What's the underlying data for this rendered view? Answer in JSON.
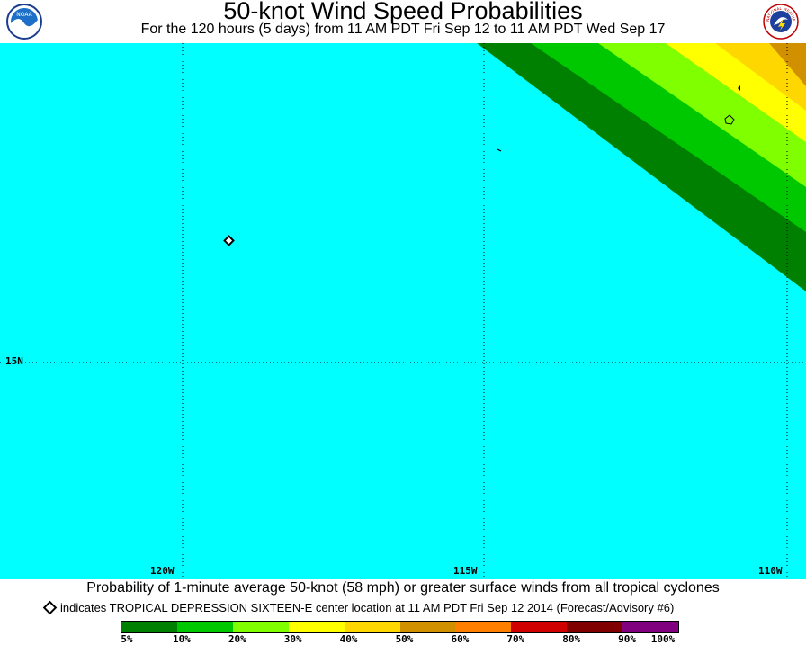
{
  "header": {
    "title": "50-knot Wind Speed Probabilities",
    "subtitle": "For the 120 hours (5 days) from 11 AM PDT Fri Sep 12 to 11 AM PDT Wed Sep 17",
    "left_logo_icon": "noaa-logo-icon",
    "right_logo_icon": "national-weather-service-logo-icon",
    "left_logo_text": "NOAA",
    "right_logo_text": "NATIONAL WEATHER SERVICE"
  },
  "map": {
    "ocean_color": "#00ffff",
    "latitude_labels": [
      "15N"
    ],
    "longitude_labels": [
      "120W",
      "115W",
      "110W"
    ],
    "center_marker_icon": "diamond-icon"
  },
  "caption": "Probability of 1-minute average 50-knot (58 mph) or greater surface winds from all tropical cyclones",
  "advisory": {
    "icon": "diamond-icon",
    "text": "indicates TROPICAL DEPRESSION SIXTEEN-E center location at 11 AM PDT Fri Sep 12 2014 (Forecast/Advisory #6)"
  },
  "legend": {
    "colors": [
      "#008000",
      "#00c800",
      "#80ff00",
      "#ffff00",
      "#ffd700",
      "#d09000",
      "#ff8000",
      "#d00000",
      "#800000",
      "#800080"
    ],
    "labels": [
      "5%",
      "10%",
      "20%",
      "30%",
      "40%",
      "50%",
      "60%",
      "70%",
      "80%",
      "90%",
      "100%"
    ]
  }
}
